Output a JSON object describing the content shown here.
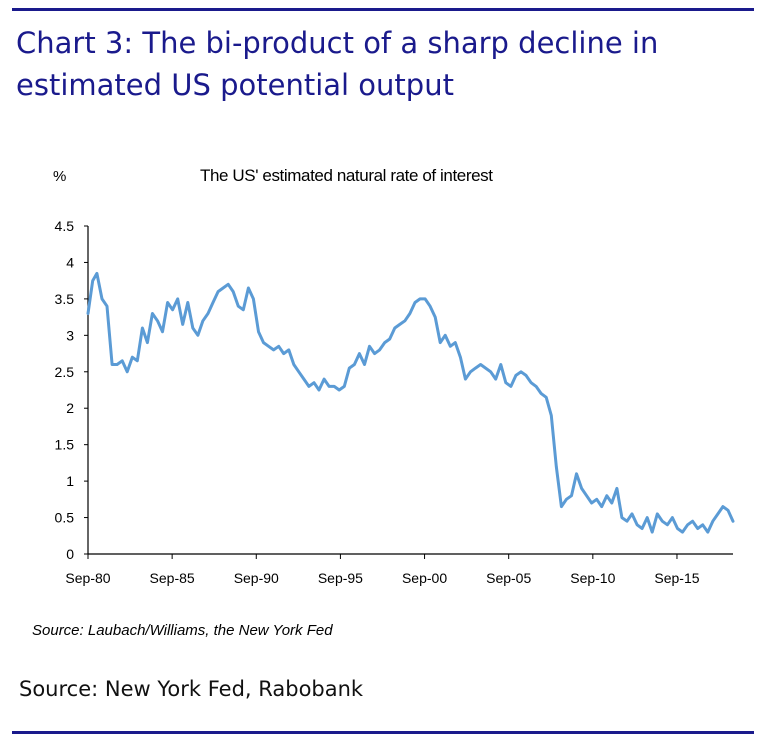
{
  "header": {
    "headline": "Chart 3: The bi-product of a sharp decline in estimated US potential output"
  },
  "chart_data": {
    "type": "line",
    "title": "The US' estimated natural rate of interest",
    "unit_label": "%",
    "xlabel": "",
    "ylabel": "",
    "ylim": [
      0,
      4.5
    ],
    "yticks": [
      0,
      0.5,
      1,
      1.5,
      2,
      2.5,
      3,
      3.5,
      4,
      4.5
    ],
    "ytick_labels": [
      "0",
      "0.5",
      "1",
      "1.5",
      "2",
      "2.5",
      "3",
      "3.5",
      "4",
      "4.5"
    ],
    "xlim": [
      1980.67,
      2019.0
    ],
    "xticks": [
      1980.67,
      1985.67,
      1990.67,
      1995.67,
      2000.67,
      2005.67,
      2010.67,
      2015.67
    ],
    "xtick_labels": [
      "Sep-80",
      "Sep-85",
      "Sep-90",
      "Sep-95",
      "Sep-00",
      "Sep-05",
      "Sep-10",
      "Sep-15"
    ],
    "grid": false,
    "legend": "none",
    "color": "#5b9bd5",
    "series": [
      {
        "x": [
          1980.67,
          1980.95,
          1981.2,
          1981.5,
          1981.8,
          1982.1,
          1982.4,
          1982.7,
          1983.0,
          1983.3,
          1983.6,
          1983.9,
          1984.2,
          1984.5,
          1984.8,
          1985.1,
          1985.4,
          1985.7,
          1986.0,
          1986.3,
          1986.6,
          1986.9,
          1987.2,
          1987.5,
          1987.8,
          1988.1,
          1988.4,
          1988.7,
          1989.0,
          1989.3,
          1989.6,
          1989.9,
          1990.2,
          1990.5,
          1990.8,
          1991.1,
          1991.4,
          1991.7,
          1992.0,
          1992.3,
          1992.6,
          1992.9,
          1993.2,
          1993.5,
          1993.8,
          1994.1,
          1994.4,
          1994.7,
          1995.0,
          1995.3,
          1995.6,
          1995.9,
          1996.2,
          1996.5,
          1996.8,
          1997.1,
          1997.4,
          1997.7,
          1998.0,
          1998.3,
          1998.6,
          1998.9,
          1999.2,
          1999.5,
          1999.8,
          2000.1,
          2000.4,
          2000.7,
          2001.0,
          2001.3,
          2001.6,
          2001.9,
          2002.2,
          2002.5,
          2002.8,
          2003.1,
          2003.4,
          2003.7,
          2004.0,
          2004.3,
          2004.6,
          2004.9,
          2005.2,
          2005.5,
          2005.8,
          2006.1,
          2006.4,
          2006.7,
          2007.0,
          2007.3,
          2007.6,
          2007.9,
          2008.2,
          2008.5,
          2008.8,
          2009.1,
          2009.4,
          2009.7,
          2010.0,
          2010.3,
          2010.6,
          2010.9,
          2011.2,
          2011.5,
          2011.8,
          2012.1,
          2012.4,
          2012.7,
          2013.0,
          2013.3,
          2013.6,
          2013.9,
          2014.2,
          2014.5,
          2014.8,
          2015.1,
          2015.4,
          2015.7,
          2016.0,
          2016.3,
          2016.6,
          2016.9,
          2017.2,
          2017.5,
          2017.8,
          2018.1,
          2018.4,
          2018.7,
          2019.0
        ],
        "values": [
          3.3,
          3.75,
          3.85,
          3.5,
          3.4,
          2.6,
          2.6,
          2.65,
          2.5,
          2.7,
          2.65,
          3.1,
          2.9,
          3.3,
          3.2,
          3.05,
          3.45,
          3.35,
          3.5,
          3.15,
          3.45,
          3.1,
          3.0,
          3.2,
          3.3,
          3.45,
          3.6,
          3.65,
          3.7,
          3.6,
          3.4,
          3.35,
          3.65,
          3.5,
          3.05,
          2.9,
          2.85,
          2.8,
          2.85,
          2.75,
          2.8,
          2.6,
          2.5,
          2.4,
          2.3,
          2.35,
          2.25,
          2.4,
          2.3,
          2.3,
          2.25,
          2.3,
          2.55,
          2.6,
          2.75,
          2.6,
          2.85,
          2.75,
          2.8,
          2.9,
          2.95,
          3.1,
          3.15,
          3.2,
          3.3,
          3.45,
          3.5,
          3.5,
          3.4,
          3.25,
          2.9,
          3.0,
          2.85,
          2.9,
          2.7,
          2.4,
          2.5,
          2.55,
          2.6,
          2.55,
          2.5,
          2.4,
          2.6,
          2.35,
          2.3,
          2.45,
          2.5,
          2.45,
          2.35,
          2.3,
          2.2,
          2.15,
          1.9,
          1.2,
          0.65,
          0.75,
          0.8,
          1.1,
          0.9,
          0.8,
          0.7,
          0.75,
          0.65,
          0.8,
          0.7,
          0.9,
          0.5,
          0.45,
          0.55,
          0.4,
          0.35,
          0.5,
          0.3,
          0.55,
          0.45,
          0.4,
          0.5,
          0.35,
          0.3,
          0.4,
          0.45,
          0.35,
          0.4,
          0.3,
          0.45,
          0.55,
          0.65,
          0.6,
          0.45
        ]
      }
    ]
  },
  "footer": {
    "chart_source": "Source: Laubach/Williams, the New York Fed",
    "page_source": "Source: New York Fed, Rabobank"
  }
}
